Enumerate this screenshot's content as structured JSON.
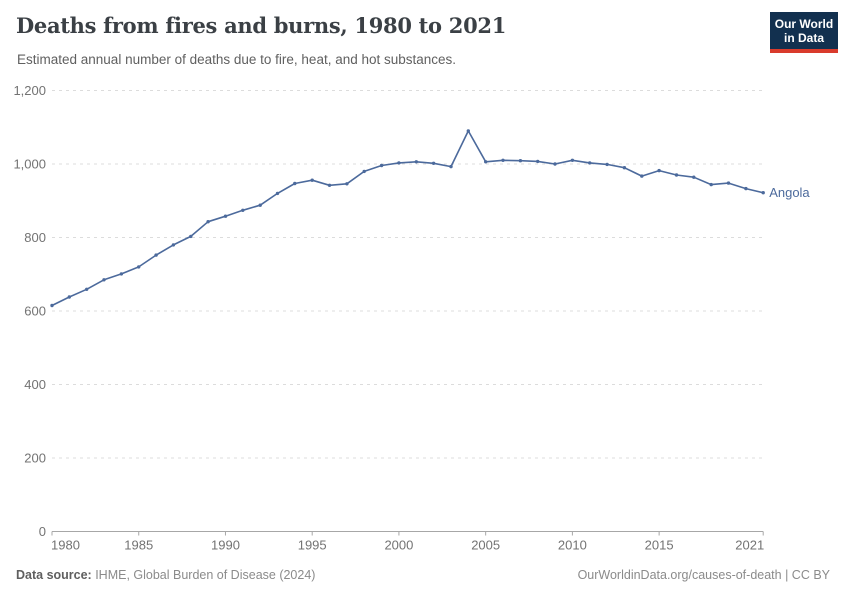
{
  "header": {
    "title": "Deaths from fires and burns, 1980 to 2021",
    "subtitle": "Estimated annual number of deaths due to fire, heat, and hot substances.",
    "logo": {
      "line1": "Our World",
      "line2": "in Data",
      "bg_color": "#12304F",
      "accent_color": "#D93B2C"
    }
  },
  "footer": {
    "source_label": "Data source:",
    "source_value": " IHME, Global Burden of Disease (2024)",
    "credit": "OurWorldinData.org/causes-of-death | CC BY"
  },
  "chart_data": {
    "type": "line",
    "title": "Deaths from fires and burns, 1980 to 2021",
    "subtitle": "Estimated annual number of deaths due to fire, heat, and hot substances.",
    "xlabel": "",
    "ylabel": "",
    "xlim": [
      1980,
      2021
    ],
    "ylim": [
      0,
      1200
    ],
    "grid": "horizontal-dashed",
    "legend": "end-of-line-label",
    "x": [
      1980,
      1981,
      1982,
      1983,
      1984,
      1985,
      1986,
      1987,
      1988,
      1989,
      1990,
      1991,
      1992,
      1993,
      1994,
      1995,
      1996,
      1997,
      1998,
      1999,
      2000,
      2001,
      2002,
      2003,
      2004,
      2005,
      2006,
      2007,
      2008,
      2009,
      2010,
      2011,
      2012,
      2013,
      2014,
      2015,
      2016,
      2017,
      2018,
      2019,
      2020,
      2021
    ],
    "series": [
      {
        "name": "Angola",
        "color": "#4C6A9C",
        "values": [
          615,
          638,
          659,
          685,
          701,
          720,
          752,
          780,
          803,
          843,
          858,
          874,
          888,
          920,
          947,
          956,
          942,
          946,
          980,
          996,
          1003,
          1006,
          1002,
          993,
          1090,
          1006,
          1010,
          1009,
          1007,
          1000,
          1010,
          1003,
          999,
          990,
          967,
          982,
          970,
          964,
          944,
          948,
          933,
          922
        ]
      }
    ],
    "xticks": {
      "values": [
        1980,
        1985,
        1990,
        1995,
        2000,
        2005,
        2010,
        2015,
        2021
      ],
      "labels": [
        "1980",
        "1985",
        "1990",
        "1995",
        "2000",
        "2005",
        "2010",
        "2015",
        "2021"
      ]
    },
    "yticks": {
      "values": [
        0,
        200,
        400,
        600,
        800,
        1000,
        1200
      ],
      "labels": [
        "0",
        "200",
        "400",
        "600",
        "800",
        "1,000",
        "1,200"
      ]
    },
    "axis_color": "#a7a7a7",
    "gridline_color": "#dcdcdc",
    "tick_label_color": "#737373"
  }
}
